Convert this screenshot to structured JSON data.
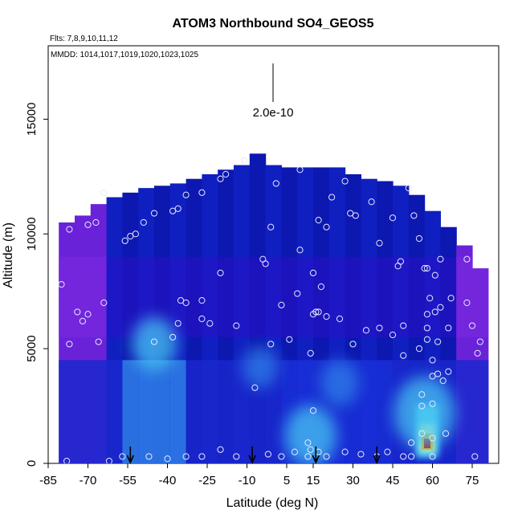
{
  "chart_data": {
    "type": "heatmap",
    "title": "ATOM3 Northbound SO4_GEOS5",
    "flights_note": "Flts: 7,8,9,10,11,12",
    "dates_note": "MMDD: 1014,1017,1019,1020,1023,1025",
    "xlabel": "Latitude (deg N)",
    "ylabel": "Altitude (m)",
    "xlim": [
      -85,
      85
    ],
    "ylim": [
      0,
      18200
    ],
    "x_ticks": [
      "-85",
      "-70",
      "-55",
      "-40",
      "-25",
      "-10",
      "5",
      "15",
      "30",
      "45",
      "60",
      "75"
    ],
    "y_ticks": [
      "0",
      "5000",
      "10000",
      "15000"
    ],
    "scale_bar_label": "2.0e-10",
    "colorscale": [
      "#0a0aa8",
      "#1a30d8",
      "#2f7fe8",
      "#46c6f2",
      "#ffffa0",
      "#ffb400",
      "#e83200",
      "#b40000"
    ],
    "columns": [
      {
        "lat": -78,
        "top": 10500
      },
      {
        "lat": -72,
        "top": 10800
      },
      {
        "lat": -66,
        "top": 11300
      },
      {
        "lat": -60,
        "top": 11600
      },
      {
        "lat": -54,
        "top": 11800
      },
      {
        "lat": -48,
        "top": 12000
      },
      {
        "lat": -42,
        "top": 12100
      },
      {
        "lat": -36,
        "top": 12200
      },
      {
        "lat": -30,
        "top": 12400
      },
      {
        "lat": -24,
        "top": 12600
      },
      {
        "lat": -18,
        "top": 12800
      },
      {
        "lat": -12,
        "top": 13000
      },
      {
        "lat": -6,
        "top": 13500
      },
      {
        "lat": 0,
        "top": 13000
      },
      {
        "lat": 6,
        "top": 12900
      },
      {
        "lat": 12,
        "top": 12900
      },
      {
        "lat": 18,
        "top": 12900
      },
      {
        "lat": 24,
        "top": 12900
      },
      {
        "lat": 30,
        "top": 12600
      },
      {
        "lat": 36,
        "top": 12400
      },
      {
        "lat": 42,
        "top": 12300
      },
      {
        "lat": 48,
        "top": 12100
      },
      {
        "lat": 54,
        "top": 11700
      },
      {
        "lat": 60,
        "top": 11000
      },
      {
        "lat": 66,
        "top": 10300
      },
      {
        "lat": 72,
        "top": 9500
      },
      {
        "lat": 78,
        "top": 8500
      }
    ],
    "hotspots": [
      {
        "lat": -45,
        "alt": 5200,
        "value": 0.35
      },
      {
        "lat": 14,
        "alt": 1200,
        "value": 0.45
      },
      {
        "lat": 58,
        "alt": 800,
        "value": 1.0
      },
      {
        "lat": 57,
        "alt": 2200,
        "value": 0.6
      },
      {
        "lat": -5,
        "alt": 4200,
        "value": 0.2
      },
      {
        "lat": 25,
        "alt": 3500,
        "value": 0.25
      }
    ],
    "observations": [
      [
        -80,
        7800
      ],
      [
        -77,
        5200
      ],
      [
        -74,
        6600
      ],
      [
        -72,
        6200
      ],
      [
        -70,
        6500
      ],
      [
        -66,
        5300
      ],
      [
        -64,
        7000
      ],
      [
        -77,
        10200
      ],
      [
        -70,
        10400
      ],
      [
        -67,
        10500
      ],
      [
        -64,
        11800
      ],
      [
        -56,
        9700
      ],
      [
        -54,
        9900
      ],
      [
        -52,
        10000
      ],
      [
        -49,
        10500
      ],
      [
        -45,
        10900
      ],
      [
        -38,
        11000
      ],
      [
        -36,
        11100
      ],
      [
        -33,
        11700
      ],
      [
        -27,
        11800
      ],
      [
        -20,
        12400
      ],
      [
        -18,
        12600
      ],
      [
        -11,
        13200
      ],
      [
        1,
        12200
      ],
      [
        10,
        12800
      ],
      [
        22,
        11600
      ],
      [
        27,
        12300
      ],
      [
        37,
        11400
      ],
      [
        31,
        10800
      ],
      [
        29,
        10900
      ],
      [
        40,
        9600
      ],
      [
        51,
        12000
      ],
      [
        45,
        10700
      ],
      [
        53,
        10800
      ],
      [
        55,
        9800
      ],
      [
        48,
        8800
      ],
      [
        47,
        8600
      ],
      [
        57,
        8500
      ],
      [
        58,
        8500
      ],
      [
        61,
        8200
      ],
      [
        63,
        8900
      ],
      [
        67,
        7200
      ],
      [
        59,
        7200
      ],
      [
        63,
        6800
      ],
      [
        61,
        6600
      ],
      [
        58,
        6500
      ],
      [
        49,
        6000
      ],
      [
        45,
        5600
      ],
      [
        40,
        5900
      ],
      [
        35,
        5800
      ],
      [
        30,
        5200
      ],
      [
        25,
        6300
      ],
      [
        20,
        6400
      ],
      [
        17,
        6600
      ],
      [
        16,
        6600
      ],
      [
        15,
        6500
      ],
      [
        18,
        7700
      ],
      [
        9,
        7400
      ],
      [
        3,
        6900
      ],
      [
        -4,
        8900
      ],
      [
        -3,
        8700
      ],
      [
        -1,
        10300
      ],
      [
        10,
        9300
      ],
      [
        15,
        8300
      ],
      [
        17,
        10600
      ],
      [
        20,
        10300
      ],
      [
        -20,
        8300
      ],
      [
        -27,
        7100
      ],
      [
        -33,
        7000
      ],
      [
        -36,
        6100
      ],
      [
        -38,
        5500
      ],
      [
        -45,
        5300
      ],
      [
        -35,
        7100
      ],
      [
        -27,
        6300
      ],
      [
        -24,
        6100
      ],
      [
        -14,
        6000
      ],
      [
        -1,
        5200
      ],
      [
        6,
        5400
      ],
      [
        14,
        4800
      ],
      [
        -7,
        3300
      ],
      [
        49,
        4700
      ],
      [
        55,
        5000
      ],
      [
        58,
        5400
      ],
      [
        62,
        5300
      ],
      [
        66,
        5900
      ],
      [
        60,
        4500
      ],
      [
        60,
        3800
      ],
      [
        62,
        3900
      ],
      [
        66,
        4000
      ],
      [
        64,
        3600
      ],
      [
        56,
        3000
      ],
      [
        60,
        2600
      ],
      [
        56,
        2500
      ],
      [
        65,
        1300
      ],
      [
        60,
        1100
      ],
      [
        56,
        1300
      ],
      [
        52,
        900
      ],
      [
        60,
        300
      ],
      [
        52,
        300
      ],
      [
        49,
        300
      ],
      [
        43,
        500
      ],
      [
        39,
        300
      ],
      [
        33,
        400
      ],
      [
        27,
        500
      ],
      [
        20,
        300
      ],
      [
        13,
        300
      ],
      [
        13,
        900
      ],
      [
        14,
        600
      ],
      [
        15,
        2300
      ],
      [
        17,
        500
      ],
      [
        8,
        500
      ],
      [
        3,
        300
      ],
      [
        -2,
        400
      ],
      [
        -14,
        300
      ],
      [
        -20,
        600
      ],
      [
        -27,
        300
      ],
      [
        -33,
        300
      ],
      [
        -40,
        200
      ],
      [
        -47,
        300
      ],
      [
        -57,
        300
      ],
      [
        -62,
        100
      ],
      [
        -78,
        100
      ],
      [
        76,
        300
      ],
      [
        78,
        5300
      ],
      [
        75,
        6000
      ],
      [
        73,
        8900
      ],
      [
        73,
        7000
      ],
      [
        77,
        4800
      ],
      [
        58,
        5900
      ]
    ],
    "arrows_lat": [
      -54,
      -8,
      16,
      39
    ]
  }
}
